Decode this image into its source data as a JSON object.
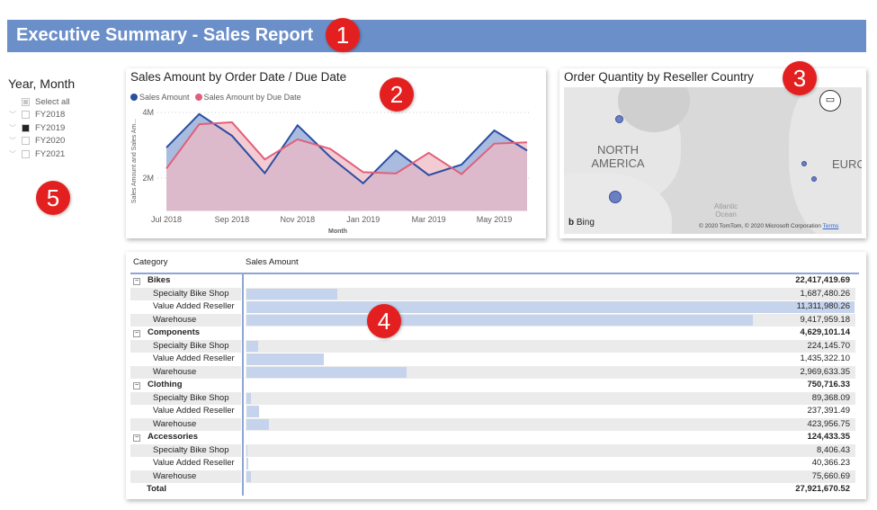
{
  "header": {
    "title": "Executive Summary - Sales Report"
  },
  "annotations": [
    "1",
    "2",
    "3",
    "4",
    "5"
  ],
  "slicer": {
    "title": "Year, Month",
    "items": [
      {
        "label": "Select all",
        "state": "partial"
      },
      {
        "label": "FY2018",
        "state": "unchecked"
      },
      {
        "label": "FY2019",
        "state": "checked"
      },
      {
        "label": "FY2020",
        "state": "unchecked"
      },
      {
        "label": "FY2021",
        "state": "unchecked"
      }
    ]
  },
  "chart_data": {
    "type": "area",
    "title": "Sales Amount by Order Date / Due Date",
    "xlabel": "Month",
    "ylabel": "Sales Amount and Sales Am...",
    "categories": [
      "Jul 2018",
      "Aug 2018",
      "Sep 2018",
      "Oct 2018",
      "Nov 2018",
      "Dec 2018",
      "Jan 2019",
      "Feb 2019",
      "Mar 2019",
      "Apr 2019",
      "May 2019",
      "Jun 2019"
    ],
    "xtick_labels": [
      "Jul 2018",
      "Sep 2018",
      "Nov 2018",
      "Jan 2019",
      "Mar 2019",
      "May 2019"
    ],
    "ytick_labels": [
      "2M",
      "4M"
    ],
    "ylim": [
      1000000,
      4300000
    ],
    "legend": "top-left",
    "grid": true,
    "series": [
      {
        "name": "Sales Amount",
        "color": "#2b4ea2",
        "fill": "#a9bbdf",
        "values": [
          2930000,
          3950000,
          3290000,
          2150000,
          3610000,
          2640000,
          1840000,
          2840000,
          2090000,
          2410000,
          3450000,
          2840000
        ]
      },
      {
        "name": "Sales Amount by Due Date",
        "color": "#e0607a",
        "fill": "#efb9c4",
        "values": [
          2290000,
          3640000,
          3700000,
          2570000,
          3180000,
          2890000,
          2180000,
          2140000,
          2770000,
          2120000,
          3050000,
          3090000
        ]
      }
    ]
  },
  "map": {
    "title": "Order Quantity by Reseller Country",
    "labels": [
      "NORTH AMERICA",
      "EURO",
      "Atlantic Ocean"
    ],
    "brand": "Bing",
    "copyright": "© 2020 TomTom, © 2020 Microsoft Corporation",
    "terms": "Terms",
    "point_color": "#6b80c4"
  },
  "table": {
    "headers": [
      "Category",
      "Sales Amount"
    ],
    "bar_color": "#c5d3ec",
    "rows": [
      {
        "type": "category",
        "label": "Bikes",
        "value": "22,417,419.69"
      },
      {
        "type": "sub",
        "label": "Specialty Bike Shop",
        "value": "1,687,480.26",
        "amount": 1687480.26
      },
      {
        "type": "sub",
        "label": "Value Added Reseller",
        "value": "11,311,980.26",
        "amount": 11311980.26
      },
      {
        "type": "sub",
        "label": "Warehouse",
        "value": "9,417,959.18",
        "amount": 9417959.18
      },
      {
        "type": "category",
        "label": "Components",
        "value": "4,629,101.14"
      },
      {
        "type": "sub",
        "label": "Specialty Bike Shop",
        "value": "224,145.70",
        "amount": 224145.7
      },
      {
        "type": "sub",
        "label": "Value Added Reseller",
        "value": "1,435,322.10",
        "amount": 1435322.1
      },
      {
        "type": "sub",
        "label": "Warehouse",
        "value": "2,969,633.35",
        "amount": 2969633.35
      },
      {
        "type": "category",
        "label": "Clothing",
        "value": "750,716.33"
      },
      {
        "type": "sub",
        "label": "Specialty Bike Shop",
        "value": "89,368.09",
        "amount": 89368.09
      },
      {
        "type": "sub",
        "label": "Value Added Reseller",
        "value": "237,391.49",
        "amount": 237391.49
      },
      {
        "type": "sub",
        "label": "Warehouse",
        "value": "423,956.75",
        "amount": 423956.75
      },
      {
        "type": "category",
        "label": "Accessories",
        "value": "124,433.35"
      },
      {
        "type": "sub",
        "label": "Specialty Bike Shop",
        "value": "8,406.43",
        "amount": 8406.43
      },
      {
        "type": "sub",
        "label": "Value Added Reseller",
        "value": "40,366.23",
        "amount": 40366.23
      },
      {
        "type": "sub",
        "label": "Warehouse",
        "value": "75,660.69",
        "amount": 75660.69
      },
      {
        "type": "total",
        "label": "Total",
        "value": "27,921,670.52"
      }
    ]
  }
}
